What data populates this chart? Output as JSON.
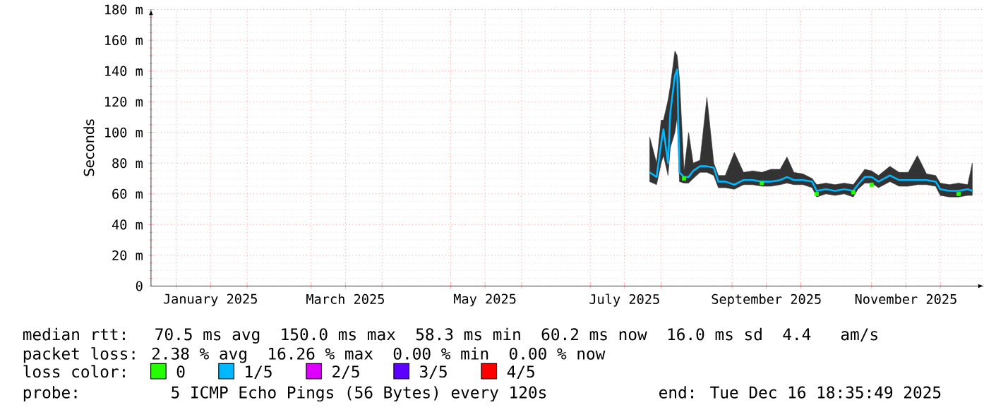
{
  "chart_data": {
    "type": "line",
    "ylabel": "Seconds",
    "xlim": [
      "2024-12-21",
      "2025-12-20"
    ],
    "xticks": [
      {
        "value": "2025-01-01",
        "label": null
      },
      {
        "value": "2025-01-16",
        "label": "January 2025"
      },
      {
        "value": "2025-02-01",
        "label": null
      },
      {
        "value": "2025-03-01",
        "label": null
      },
      {
        "value": "2025-03-16",
        "label": "March 2025"
      },
      {
        "value": "2025-04-01",
        "label": null
      },
      {
        "value": "2025-05-01",
        "label": null
      },
      {
        "value": "2025-05-16",
        "label": "May 2025"
      },
      {
        "value": "2025-06-01",
        "label": null
      },
      {
        "value": "2025-07-01",
        "label": null
      },
      {
        "value": "2025-07-16",
        "label": "July 2025"
      },
      {
        "value": "2025-08-01",
        "label": null
      },
      {
        "value": "2025-09-01",
        "label": null
      },
      {
        "value": "2025-09-16",
        "label": "September 2025"
      },
      {
        "value": "2025-10-01",
        "label": null
      },
      {
        "value": "2025-11-01",
        "label": null
      },
      {
        "value": "2025-11-16",
        "label": "November 2025"
      },
      {
        "value": "2025-12-01",
        "label": null
      }
    ],
    "ylim": [
      0,
      180
    ],
    "yticks": [
      0,
      {
        "value": 20,
        "label": "20 m"
      },
      {
        "value": 40,
        "label": "40 m"
      },
      {
        "value": 60,
        "label": "60 m"
      },
      {
        "value": 80,
        "label": "80 m"
      },
      {
        "value": 100,
        "label": "100 m"
      },
      {
        "value": 120,
        "label": "120 m"
      },
      {
        "value": 140,
        "label": "140 m"
      },
      {
        "value": 160,
        "label": "160 m"
      },
      {
        "value": 180,
        "label": "180 m"
      }
    ],
    "grid": true,
    "legend": "bottom",
    "legend_title": "loss color:",
    "series": [
      {
        "name": "0",
        "color": "#26ff00",
        "type": "scatter",
        "marker": "square",
        "x": [
          "2025-08-11",
          "2025-09-14",
          "2025-10-08",
          "2025-10-24",
          "2025-11-01",
          "2025-12-09"
        ],
        "values": [
          70,
          67,
          60,
          61,
          66,
          60
        ]
      },
      {
        "name": "1/5",
        "color": "#00b8ff",
        "x": [
          "2025-07-27",
          "2025-07-30",
          "2025-08-01",
          "2025-08-02",
          "2025-08-04",
          "2025-08-05",
          "2025-08-07",
          "2025-08-08",
          "2025-08-09",
          "2025-08-11",
          "2025-08-13",
          "2025-08-15",
          "2025-08-18",
          "2025-08-21",
          "2025-08-24",
          "2025-08-26",
          "2025-08-29",
          "2025-09-02",
          "2025-09-06",
          "2025-09-10",
          "2025-09-14",
          "2025-09-18",
          "2025-09-22",
          "2025-09-25",
          "2025-09-28",
          "2025-10-02",
          "2025-10-06",
          "2025-10-08",
          "2025-10-12",
          "2025-10-16",
          "2025-10-20",
          "2025-10-24",
          "2025-10-26",
          "2025-10-29",
          "2025-11-01",
          "2025-11-04",
          "2025-11-09",
          "2025-11-13",
          "2025-11-17",
          "2025-11-21",
          "2025-11-25",
          "2025-11-29",
          "2025-12-01",
          "2025-12-05",
          "2025-12-09",
          "2025-12-13",
          "2025-12-15"
        ],
        "values": [
          74,
          71,
          93,
          102,
          80,
          113,
          137,
          141,
          74,
          71,
          71,
          75,
          78,
          78,
          77,
          68,
          68,
          66,
          69,
          69,
          68,
          68,
          69,
          71,
          69,
          69,
          68,
          62,
          63,
          62,
          63,
          62,
          66,
          71,
          71,
          68,
          72,
          69,
          69,
          69,
          69,
          68,
          63,
          62,
          62,
          63,
          62
        ],
        "lower": [
          68,
          66,
          80,
          85,
          72,
          90,
          100,
          110,
          68,
          67,
          67,
          70,
          74,
          74,
          72,
          64,
          64,
          63,
          66,
          66,
          65,
          65,
          66,
          67,
          66,
          66,
          64,
          58,
          60,
          59,
          60,
          58,
          63,
          67,
          67,
          64,
          68,
          65,
          65,
          66,
          66,
          65,
          59,
          58,
          58,
          59,
          59
        ],
        "upper": [
          97,
          80,
          108,
          108,
          121,
          130,
          153,
          150,
          135,
          75,
          100,
          80,
          82,
          123,
          80,
          72,
          72,
          87,
          74,
          75,
          74,
          76,
          76,
          84,
          74,
          73,
          70,
          66,
          67,
          66,
          67,
          66,
          70,
          76,
          75,
          72,
          78,
          74,
          74,
          85,
          73,
          72,
          67,
          66,
          67,
          66,
          80
        ]
      },
      {
        "name": "2/5",
        "color": "#dd00ff"
      },
      {
        "name": "3/5",
        "color": "#5e00ff"
      },
      {
        "name": "4/5",
        "color": "#ff0000"
      }
    ],
    "annotations": [
      "median rtt:  70.5 ms avg  150.0 ms max  58.3 ms min  60.2 ms now  16.0 ms sd  4.4   am/s",
      "packet loss: 2.38 % avg  16.26 % max  0.00 % min  0.00 % now",
      "probe:       5 ICMP Echo Pings (56 Bytes) every 120s",
      "end: Tue Dec 16 18:35:49 2025"
    ]
  }
}
